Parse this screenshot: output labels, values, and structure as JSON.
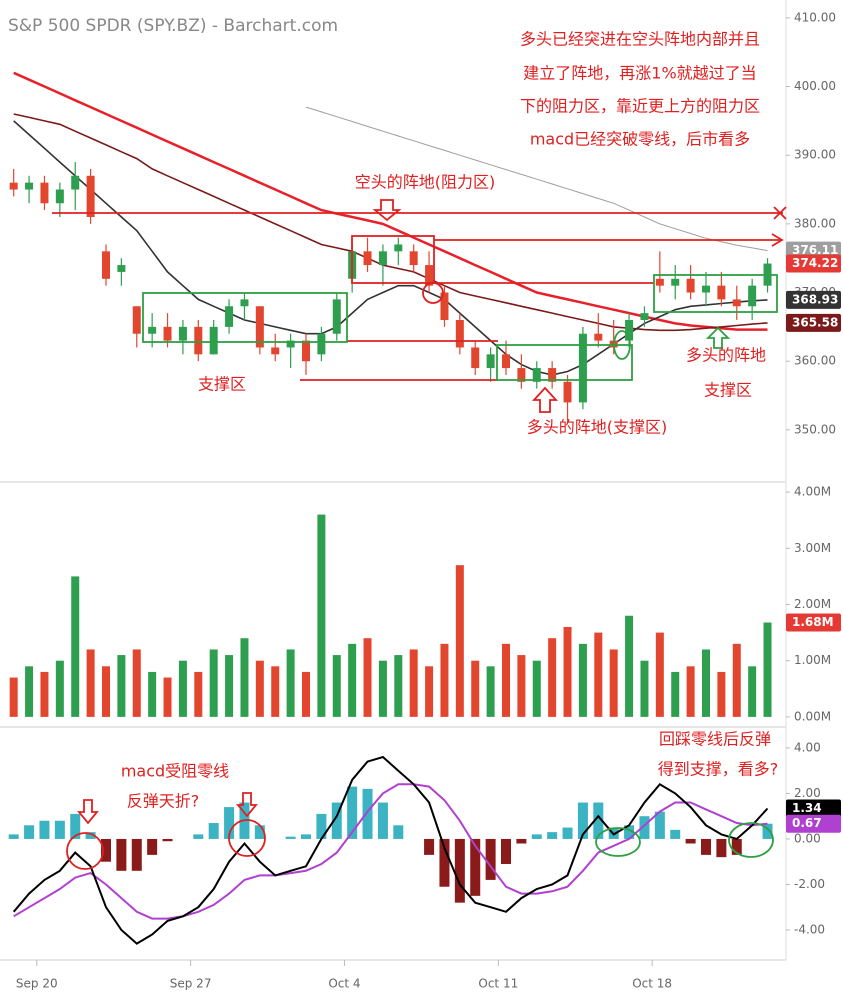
{
  "chart_data": [
    {
      "type": "candlestick",
      "title": "S&P 500 SPDR (SPY.BZ) - Barchart.com",
      "x": [
        0.5,
        1.5,
        2.5,
        3.5,
        4.5,
        5.5,
        6.5,
        7.5,
        8.5,
        9.5,
        10.5,
        11.5,
        12.5,
        13.5,
        14.5,
        15.5,
        16.5,
        17.5,
        18.5,
        19.5,
        20.5,
        21.5,
        22.5,
        23.5,
        24.5,
        25.5,
        26.5,
        27.5,
        28.5,
        29.5,
        30.5,
        31.5,
        32.5,
        33.5,
        34.5,
        35.5,
        36.5,
        37.5,
        38.5,
        39.5,
        40.5,
        41.5,
        42.5,
        43.5,
        44.5,
        45.5,
        46.5,
        47.5,
        48.5,
        49.5
      ],
      "open": [
        386,
        385,
        386,
        383,
        385,
        387,
        376,
        373,
        368,
        364,
        365,
        363,
        365,
        361,
        365,
        368,
        368,
        362,
        362,
        363,
        361,
        364,
        372,
        376,
        374,
        376,
        376,
        374,
        370,
        366,
        362,
        359,
        361,
        359,
        357,
        359,
        357,
        354,
        364,
        363,
        363,
        366,
        372,
        371,
        372,
        370,
        371,
        369,
        368,
        371
      ],
      "high": [
        388,
        387,
        387,
        386,
        389,
        388,
        377,
        375,
        368,
        367,
        367,
        366,
        366,
        366,
        369,
        370,
        368,
        364,
        364,
        364,
        365,
        370,
        377,
        378,
        377,
        378,
        377,
        376,
        371,
        367,
        363,
        362,
        363,
        361,
        360,
        360,
        358,
        365,
        367,
        366,
        367,
        368,
        376,
        374,
        374,
        373,
        373,
        371,
        372,
        375
      ],
      "low": [
        384,
        383,
        382,
        381,
        382,
        380,
        371,
        371,
        362,
        362,
        362,
        361,
        360,
        361,
        364,
        366,
        361,
        360,
        359,
        358,
        360,
        363,
        370,
        373,
        371,
        374,
        373,
        370,
        365,
        361,
        358,
        357,
        358,
        356,
        356,
        356,
        351,
        353,
        362,
        361,
        362,
        365,
        370,
        369,
        369,
        368,
        368,
        366,
        366,
        370
      ],
      "close": [
        385,
        386,
        383,
        385,
        387,
        381,
        372,
        374,
        364,
        365,
        363,
        365,
        361,
        365,
        368,
        369,
        362,
        361,
        363,
        360,
        364,
        369,
        376,
        374,
        376,
        377,
        374,
        371,
        366,
        362,
        359,
        361,
        359,
        357,
        359,
        357,
        354,
        364,
        363,
        362,
        366,
        367,
        371,
        372,
        370,
        371,
        369,
        368,
        371,
        374.22
      ],
      "up_color": "#2e9e4f",
      "down_color": "#e2462e",
      "last_color": "#e53935",
      "series": [
        {
          "color": "#e8202a",
          "values": [
            402,
            401,
            400,
            399,
            398,
            397,
            396,
            395,
            394,
            393,
            392,
            391,
            390,
            389,
            388,
            387,
            386,
            385,
            384,
            383,
            382,
            381.5,
            381,
            380.5,
            380,
            379,
            378,
            377,
            376,
            375,
            374,
            373,
            372,
            371,
            370,
            369.5,
            369,
            368.5,
            368,
            367.5,
            367,
            366.5,
            366,
            365.5,
            365.2,
            365,
            364.8,
            364.6,
            364.6,
            364.6
          ]
        },
        {
          "color": "#7b1a1a",
          "values": [
            396,
            395.5,
            395,
            394.5,
            393.5,
            392.5,
            391.5,
            390.5,
            389.5,
            388,
            387,
            386,
            385,
            384,
            383,
            382,
            381,
            380,
            379,
            378,
            377,
            376.5,
            376,
            375,
            374,
            373.5,
            373,
            372,
            371,
            370,
            369.5,
            369,
            368.5,
            368,
            367.5,
            367,
            366.5,
            366,
            365.5,
            365,
            364.8,
            364.6,
            364.5,
            364.5,
            364.6,
            364.8,
            365,
            365.2,
            365.4,
            365.58
          ]
        },
        {
          "color": "#333333",
          "values": [
            395,
            393,
            391,
            389,
            387,
            385,
            383,
            381,
            379,
            376,
            373,
            371,
            369,
            368,
            367,
            366,
            365.5,
            365,
            364.5,
            364,
            364,
            365,
            367,
            369,
            370,
            371,
            371,
            370,
            369,
            367,
            365,
            363,
            361,
            359.5,
            358.5,
            358,
            358.5,
            359.5,
            361,
            362.5,
            364,
            365.5,
            366.5,
            367.5,
            368,
            368.2,
            368.4,
            368.6,
            368.8,
            368.93
          ]
        },
        {
          "color": "#9e9e9e",
          "values": [
            null,
            null,
            null,
            null,
            null,
            null,
            null,
            null,
            null,
            null,
            null,
            null,
            null,
            null,
            null,
            null,
            null,
            null,
            null,
            397,
            396.3,
            395.6,
            394.9,
            394.2,
            393.5,
            392.8,
            392.1,
            391.4,
            390.7,
            390.0,
            389.3,
            388.6,
            387.9,
            387.2,
            386.5,
            385.8,
            385.1,
            384.4,
            383.7,
            383.0,
            382.0,
            381.0,
            380.0,
            379.3,
            378.6,
            377.9,
            377.4,
            376.9,
            376.5,
            376.11
          ]
        }
      ],
      "xlim": [
        0,
        50.7
      ],
      "ylim": [
        342.7,
        412.6
      ],
      "yticks": [
        {
          "value": 350,
          "label": "350.00"
        },
        {
          "value": 360,
          "label": "360.00"
        },
        {
          "value": 370,
          "label": "370.00"
        },
        {
          "value": 380,
          "label": "380.00"
        },
        {
          "value": 390,
          "label": "390.00"
        },
        {
          "value": 400,
          "label": "400.00"
        },
        {
          "value": 410,
          "label": "410.00"
        }
      ],
      "annotations": [
        "多头已经突进在空头阵地内部并且",
        "建立了阵地，再涨1%就越过了当",
        "下的阻力区，靠近更上方的阻力区",
        "macd已经突破零线，后市看多",
        "空头的阵地(阻力区)",
        "支撑区",
        "多头的阵地(支撑区)",
        "多头的阵地",
        "支撑区"
      ]
    },
    {
      "type": "bar",
      "values": [
        0.7,
        0.9,
        0.8,
        1.0,
        2.5,
        1.2,
        0.9,
        1.1,
        1.2,
        0.8,
        0.7,
        1.0,
        0.8,
        1.2,
        1.1,
        1.4,
        1.0,
        0.9,
        1.2,
        0.8,
        3.6,
        1.1,
        1.3,
        1.4,
        1.0,
        1.1,
        1.2,
        0.9,
        1.3,
        2.7,
        1.0,
        0.9,
        1.3,
        1.1,
        1.0,
        1.4,
        1.6,
        1.3,
        1.5,
        1.2,
        1.8,
        1.0,
        1.5,
        0.8,
        0.9,
        1.2,
        0.8,
        1.3,
        0.9,
        1.68
      ],
      "last_label": "1.68M",
      "ylim": [
        -0.18,
        4.18
      ],
      "yticks": [
        {
          "value": 0,
          "label": "0.00M"
        },
        {
          "value": 1,
          "label": "1.00M"
        },
        {
          "value": 2,
          "label": "2.00M"
        },
        {
          "value": 3,
          "label": "3.00M"
        },
        {
          "value": 4,
          "label": "4.00M"
        }
      ]
    },
    {
      "type": "macd",
      "macd": {
        "color": "#000000",
        "values": [
          -3.2,
          -2.4,
          -1.8,
          -1.4,
          -0.6,
          -1.2,
          -3.0,
          -4.0,
          -4.6,
          -4.2,
          -3.6,
          -3.4,
          -3.0,
          -2.2,
          -1.0,
          -0.2,
          -1.0,
          -1.6,
          -1.4,
          -1.2,
          0.0,
          1.0,
          2.6,
          3.4,
          3.6,
          3.0,
          2.4,
          1.6,
          -0.4,
          -2.0,
          -2.8,
          -3.0,
          -3.2,
          -2.6,
          -2.2,
          -2.0,
          -1.6,
          0.2,
          1.0,
          0.2,
          0.6,
          1.6,
          2.4,
          2.0,
          1.4,
          0.6,
          0.2,
          0.0,
          0.6,
          1.34
        ]
      },
      "signal": {
        "color": "#b040d0",
        "values": [
          -3.4,
          -3.0,
          -2.6,
          -2.2,
          -1.7,
          -1.5,
          -2.0,
          -2.6,
          -3.2,
          -3.5,
          -3.5,
          -3.4,
          -3.2,
          -2.9,
          -2.4,
          -1.8,
          -1.6,
          -1.6,
          -1.5,
          -1.4,
          -1.1,
          -0.6,
          0.3,
          1.2,
          2.0,
          2.4,
          2.4,
          2.3,
          1.7,
          0.8,
          -0.3,
          -1.2,
          -2.1,
          -2.4,
          -2.4,
          -2.3,
          -2.1,
          -1.4,
          -0.6,
          -0.3,
          0.0,
          0.6,
          1.2,
          1.6,
          1.6,
          1.3,
          1.0,
          0.7,
          0.6,
          0.67
        ]
      },
      "histogram": {
        "up_color": "#3bb3c3",
        "down_color": "#8b1a1a",
        "values": [
          0.2,
          0.6,
          0.8,
          0.8,
          1.1,
          0.3,
          -1.0,
          -1.4,
          -1.4,
          -0.7,
          -0.1,
          0.0,
          0.2,
          0.7,
          1.4,
          1.6,
          0.6,
          0.0,
          0.1,
          0.2,
          1.1,
          1.6,
          2.3,
          2.2,
          1.6,
          0.6,
          0.0,
          -0.7,
          -2.1,
          -2.8,
          -2.5,
          -1.8,
          -1.1,
          -0.2,
          0.2,
          0.3,
          0.5,
          1.6,
          1.6,
          0.5,
          0.6,
          1.0,
          1.2,
          0.4,
          -0.2,
          -0.7,
          -0.8,
          -0.7,
          0.0,
          0.67
        ]
      },
      "ylim": [
        -5.32,
        4.92
      ],
      "yticks": [
        {
          "value": -4,
          "label": "-4.00"
        },
        {
          "value": -2,
          "label": "-2.00"
        },
        {
          "value": 0,
          "label": "0.00"
        },
        {
          "value": 2,
          "label": "2.00"
        },
        {
          "value": 4,
          "label": "4.00"
        }
      ],
      "xticks": [
        {
          "value": 2,
          "label": "Sep 20"
        },
        {
          "value": 12,
          "label": "Sep 27"
        },
        {
          "value": 22,
          "label": "Oct 4"
        },
        {
          "value": 32,
          "label": "Oct 11"
        },
        {
          "value": 42,
          "label": "Oct 18"
        }
      ],
      "annotations": [
        "macd受阻零线",
        "反弹天折?",
        "回踩零线后反弹",
        "得到支撑，看多?"
      ]
    }
  ]
}
